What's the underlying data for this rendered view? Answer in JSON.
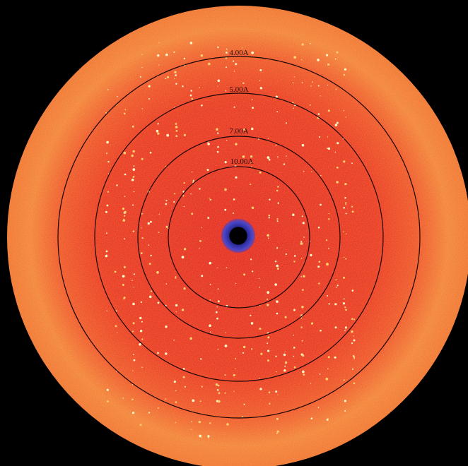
{
  "rings": [
    {
      "label": "4.00A"
    },
    {
      "label": "5.00A"
    },
    {
      "label": "7.00A"
    },
    {
      "label": "10.00A"
    }
  ]
}
